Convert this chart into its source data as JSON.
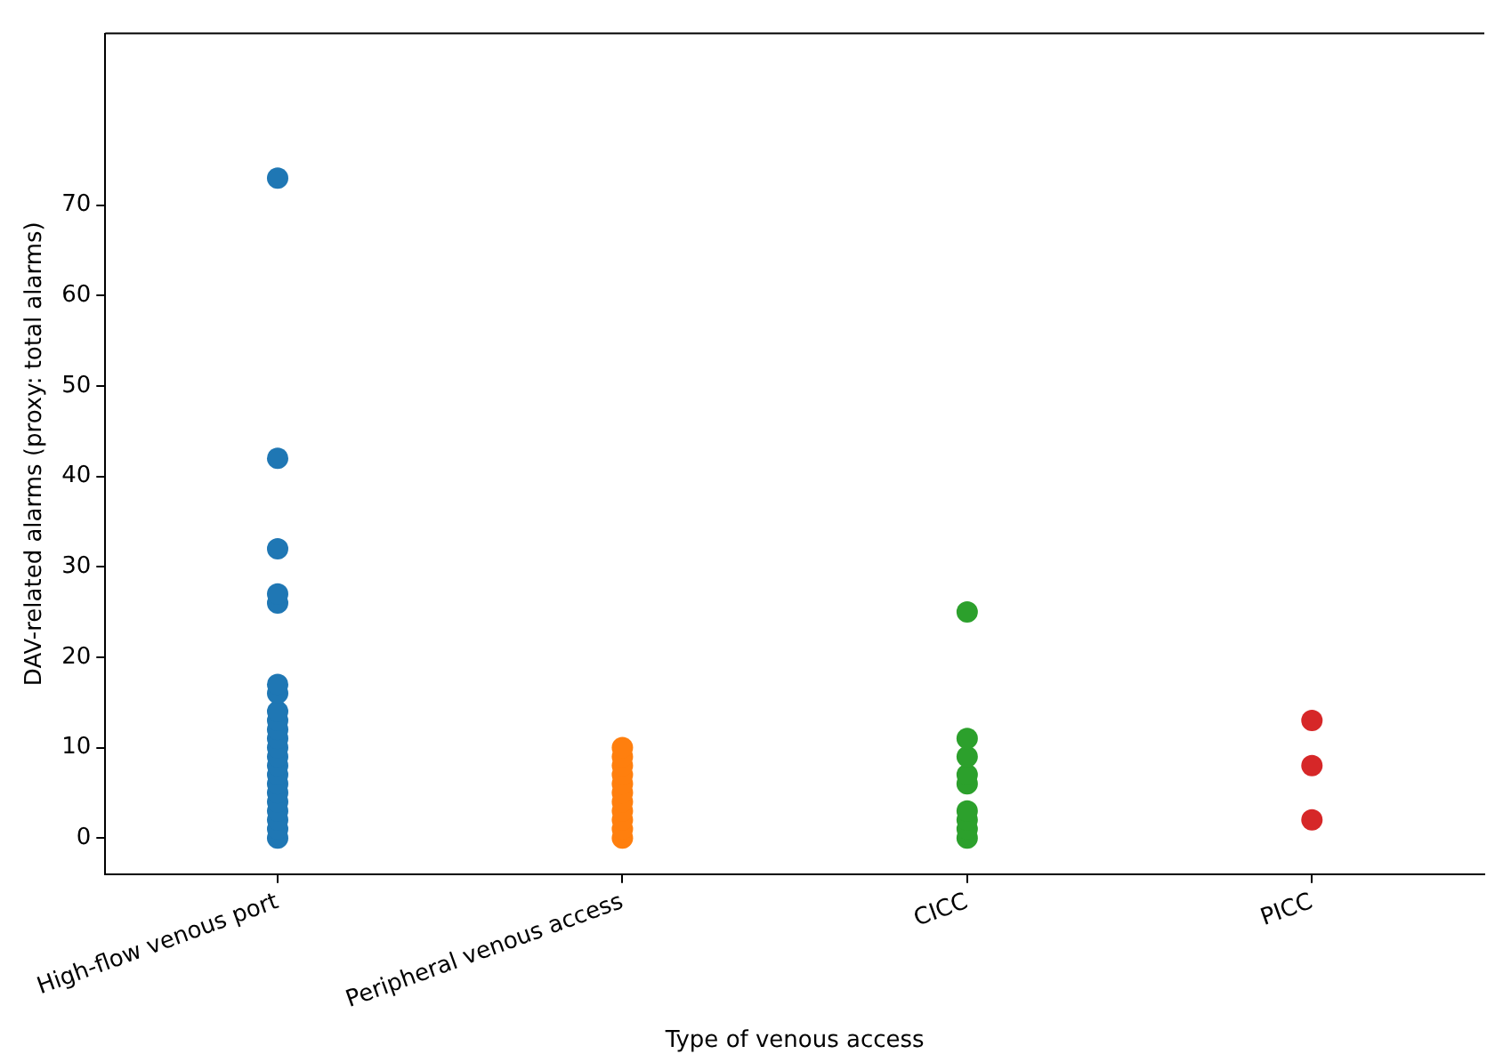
{
  "chart_data": {
    "type": "scatter",
    "xlabel": "Type of venous access",
    "ylabel": "DAV-related alarms (proxy: total alarms)",
    "categories": [
      "High-flow venous port",
      "Peripheral venous access",
      "CICC",
      "PICC"
    ],
    "series": [
      {
        "color": "#1f77b4",
        "x": [
          "High-flow venous port",
          "High-flow venous port",
          "High-flow venous port",
          "High-flow venous port",
          "High-flow venous port",
          "High-flow venous port",
          "High-flow venous port",
          "High-flow venous port",
          "High-flow venous port",
          "High-flow venous port",
          "High-flow venous port",
          "High-flow venous port",
          "High-flow venous port",
          "High-flow venous port",
          "High-flow venous port",
          "High-flow venous port",
          "High-flow venous port",
          "High-flow venous port",
          "High-flow venous port",
          "High-flow venous port",
          "High-flow venous port",
          "High-flow venous port"
        ],
        "values": [
          0,
          1,
          2,
          3,
          4,
          5,
          6,
          7,
          8,
          9,
          10,
          11,
          12,
          13,
          14,
          16,
          17,
          26,
          27,
          32,
          42,
          73
        ]
      },
      {
        "color": "#ff7f0e",
        "x": [
          "Peripheral venous access",
          "Peripheral venous access",
          "Peripheral venous access",
          "Peripheral venous access",
          "Peripheral venous access",
          "Peripheral venous access",
          "Peripheral venous access",
          "Peripheral venous access",
          "Peripheral venous access",
          "Peripheral venous access",
          "Peripheral venous access"
        ],
        "values": [
          0,
          1,
          2,
          3,
          4,
          5,
          6,
          7,
          8,
          9,
          10
        ]
      },
      {
        "color": "#2ca02c",
        "x": [
          "CICC",
          "CICC",
          "CICC",
          "CICC",
          "CICC",
          "CICC",
          "CICC",
          "CICC",
          "CICC"
        ],
        "values": [
          0,
          1,
          2,
          3,
          6,
          7,
          9,
          11,
          25
        ]
      },
      {
        "color": "#d62728",
        "x": [
          "PICC",
          "PICC",
          "PICC"
        ],
        "values": [
          2,
          8,
          13
        ]
      }
    ],
    "ylim": [
      -4,
      89
    ],
    "yticks": [
      0,
      10,
      20,
      30,
      40,
      50,
      60,
      70
    ],
    "grid": false,
    "legend": false,
    "marker": "circle"
  }
}
